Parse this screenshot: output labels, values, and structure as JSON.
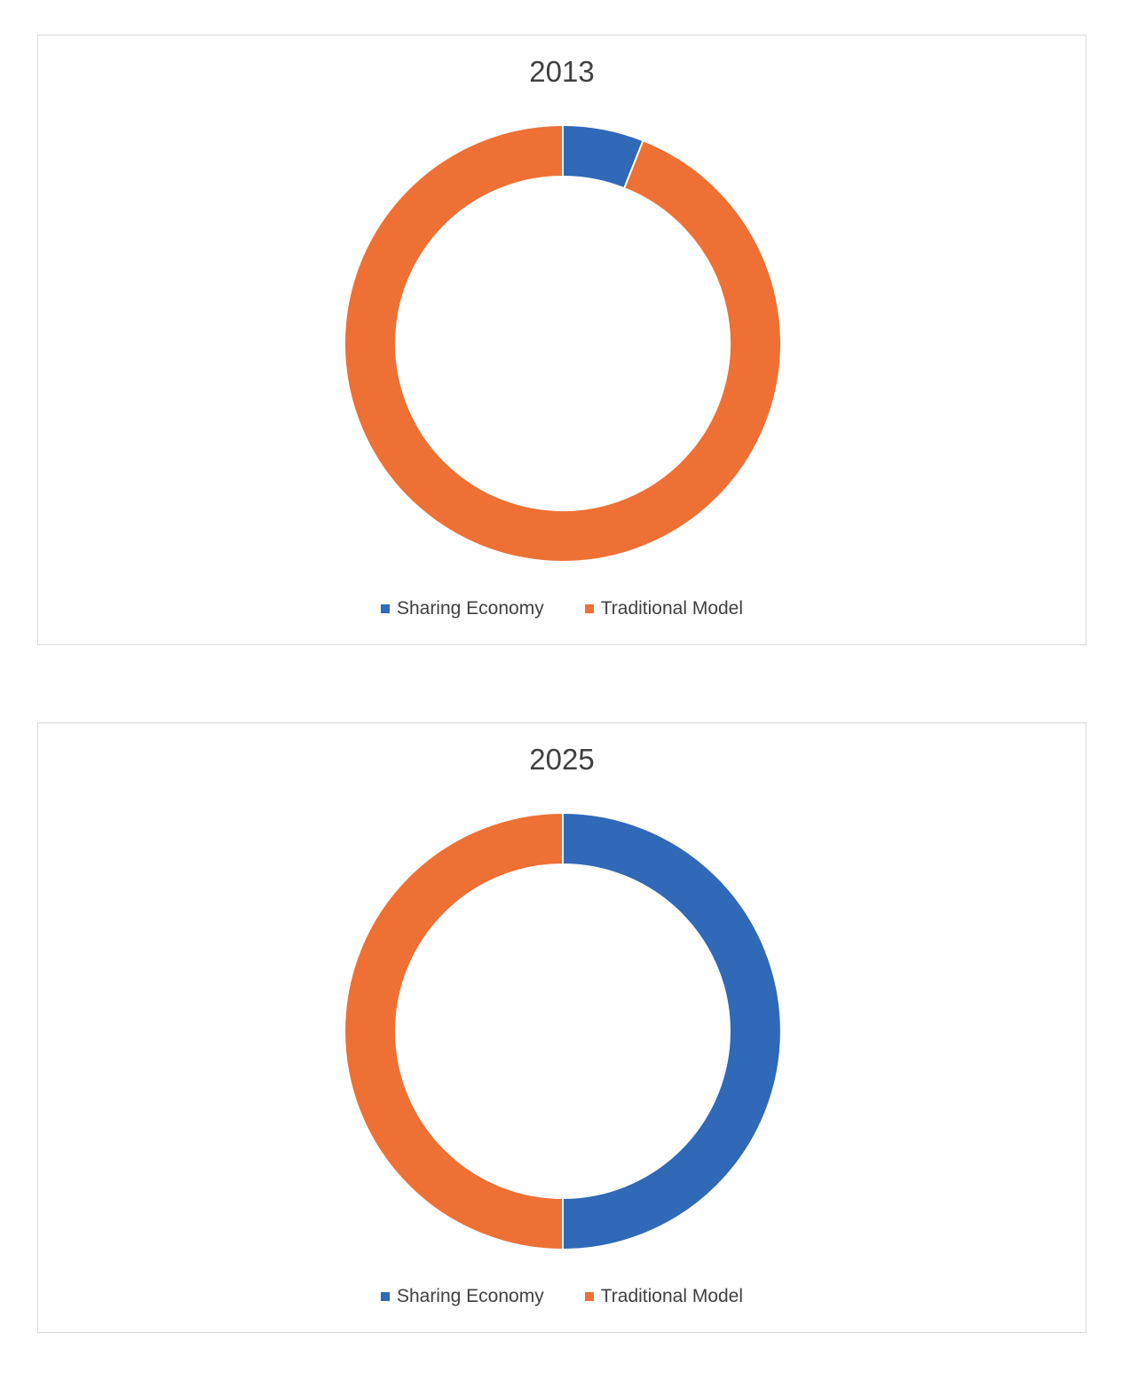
{
  "chart_data": [
    {
      "type": "pie",
      "style": "donut",
      "title": "2013",
      "categories": [
        "Sharing Economy",
        "Traditional Model"
      ],
      "values": [
        6,
        94
      ],
      "colors": [
        "#2F69B7",
        "#EE7034"
      ],
      "legend": "bottom"
    },
    {
      "type": "pie",
      "style": "donut",
      "title": "2025",
      "categories": [
        "Sharing Economy",
        "Traditional Model"
      ],
      "values": [
        50,
        50
      ],
      "colors": [
        "#2F69B7",
        "#EE7034"
      ],
      "legend": "bottom"
    }
  ]
}
